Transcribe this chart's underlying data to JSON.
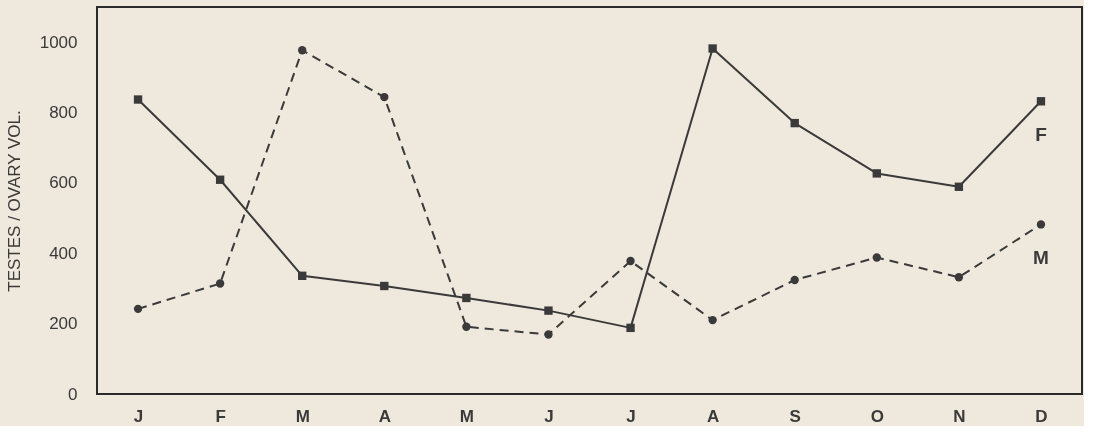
{
  "chart_data": {
    "type": "line",
    "ylabel": "TESTES / OVARY VOL.",
    "categories": [
      "J",
      "F",
      "M",
      "A",
      "M",
      "J",
      "J",
      "A",
      "S",
      "O",
      "N",
      "D"
    ],
    "series": [
      {
        "name": "F",
        "color": "#3a3a3a",
        "marker": "square",
        "line_style": "solid",
        "values": [
          837,
          609,
          336,
          307,
          273,
          237,
          188,
          982,
          770,
          627,
          589,
          832
        ]
      },
      {
        "name": "M",
        "color": "#3a3a3a",
        "marker": "circle",
        "line_style": "dashed",
        "values": [
          242,
          314,
          977,
          844,
          191,
          169,
          378,
          210,
          324,
          388,
          332,
          482
        ]
      }
    ],
    "ylim": [
      0,
      1100
    ],
    "yticks": [
      0,
      200,
      400,
      600,
      800,
      1000
    ],
    "grid": false
  }
}
